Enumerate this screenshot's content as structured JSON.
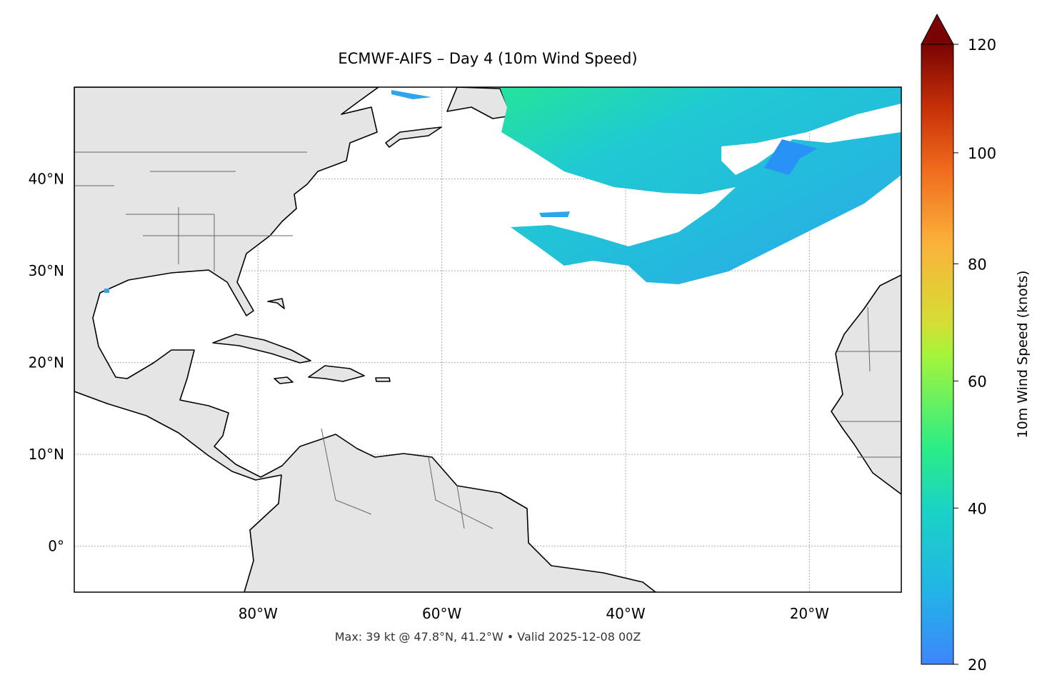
{
  "chart_data": {
    "type": "map",
    "title": "ECMWF-AIFS – Day 4 (10m Wind Speed)",
    "footer": "Max: 39 kt @ 47.8°N, 41.2°W • Valid 2025-12-08 00Z",
    "xlim": [
      -100,
      -10
    ],
    "ylim": [
      -5,
      50
    ],
    "xticks": [
      {
        "value": -80,
        "label": "80°W"
      },
      {
        "value": -60,
        "label": "60°W"
      },
      {
        "value": -40,
        "label": "40°W"
      },
      {
        "value": -20,
        "label": "20°W"
      }
    ],
    "yticks": [
      {
        "value": 0,
        "label": "0°"
      },
      {
        "value": 10,
        "label": "10°N"
      },
      {
        "value": 20,
        "label": "20°N"
      },
      {
        "value": 30,
        "label": "30°N"
      },
      {
        "value": 40,
        "label": "40°N"
      }
    ],
    "grid": true,
    "colorbar": {
      "label": "10m Wind Speed (knots)",
      "lim": [
        20,
        120
      ],
      "ticks": [
        20,
        40,
        60,
        80,
        100,
        120
      ]
    }
  }
}
